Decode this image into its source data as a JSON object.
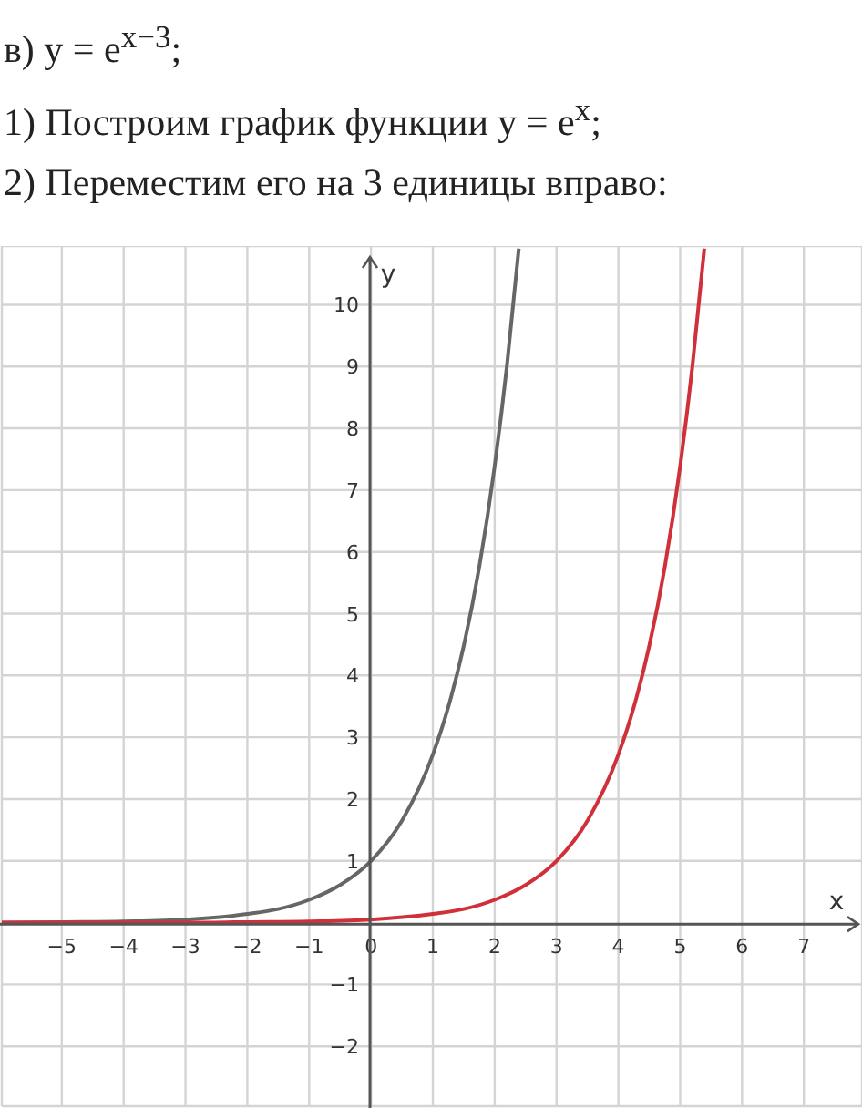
{
  "chart_data": {
    "type": "line",
    "title": "в) y = e$^{x−3}$;",
    "subtitle": "1) Построим график функции y = e$^{x}$;",
    "annotations": [
      "2) Переместим его на 3 единицы вправо:"
    ],
    "xlabel": "x",
    "ylabel": "y",
    "xlim": [
      -5.97,
      7.94
    ],
    "ylim": [
      -2.97,
      10.95
    ],
    "xticks": [
      -5,
      -4,
      -3,
      -2,
      -1,
      0,
      1,
      2,
      3,
      4,
      5,
      6,
      7
    ],
    "yticks": [
      -2,
      -1,
      1,
      2,
      3,
      4,
      5,
      6,
      7,
      8,
      9,
      10
    ],
    "grid": true,
    "marker": "none",
    "line_style": "solid",
    "series": [
      {
        "color": "#666666",
        "x": [
          -5.97,
          -5,
          -4,
          -3,
          -2,
          -1.5,
          -1,
          -0.5,
          0,
          0.5,
          1,
          1.25,
          1.5,
          1.75,
          2,
          2.2,
          2.39
        ],
        "values": [
          0,
          0.01,
          0.02,
          0.05,
          0.14,
          0.22,
          0.37,
          0.61,
          1,
          1.65,
          2.72,
          3.49,
          4.48,
          5.75,
          7.39,
          9.03,
          10.91
        ]
      },
      {
        "color": "#d0303a",
        "x": [
          -5.97,
          -3,
          -2,
          -1,
          0,
          1,
          1.5,
          2,
          2.5,
          3,
          3.5,
          4,
          4.25,
          4.5,
          4.75,
          5,
          5.2,
          5.39
        ],
        "values": [
          0,
          0,
          0.01,
          0.02,
          0.05,
          0.14,
          0.22,
          0.37,
          0.61,
          1,
          1.65,
          2.72,
          3.49,
          4.48,
          5.75,
          7.39,
          9.03,
          10.91
        ]
      }
    ]
  }
}
